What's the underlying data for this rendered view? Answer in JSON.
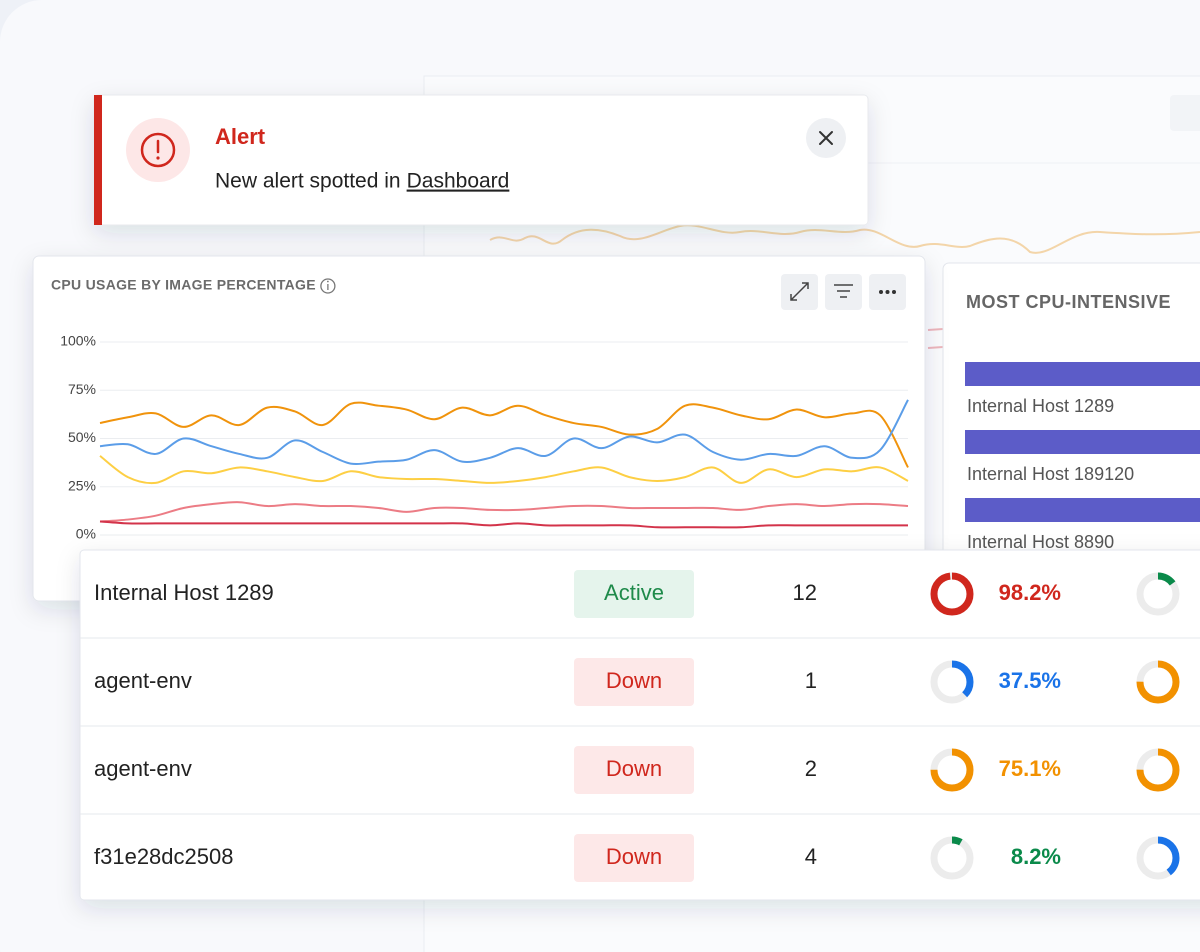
{
  "alert": {
    "title": "Alert",
    "message": "New alert spotted in",
    "link": "Dashboard"
  },
  "cpu_chart": {
    "type": "line",
    "title": "CPU USAGE BY IMAGE PERCENTAGE",
    "ylim": [
      0,
      100
    ],
    "yticks": [
      {
        "value": 0,
        "label": "0%"
      },
      {
        "value": 25,
        "label": "25%"
      },
      {
        "value": 50,
        "label": "50%"
      },
      {
        "value": 75,
        "label": "75%"
      },
      {
        "value": 100,
        "label": "100%"
      }
    ],
    "grid": true,
    "series": [
      {
        "color": "#f0930c",
        "values": [
          58,
          61,
          63,
          56,
          62,
          57,
          66,
          64,
          57,
          68,
          67,
          65,
          60,
          66,
          62,
          67,
          62,
          58,
          56,
          52,
          55,
          67,
          66,
          62,
          60,
          65,
          61,
          63,
          62,
          35
        ]
      },
      {
        "color": "#5b9de8",
        "values": [
          46,
          47,
          42,
          50,
          46,
          42,
          40,
          49,
          43,
          37,
          38,
          39,
          44,
          38,
          40,
          45,
          41,
          50,
          45,
          51,
          48,
          52,
          43,
          39,
          42,
          41,
          46,
          40,
          44,
          70
        ]
      },
      {
        "color": "#fdcf44",
        "values": [
          41,
          30,
          27,
          33,
          32,
          35,
          33,
          30,
          28,
          33,
          30,
          29,
          29,
          28,
          27,
          28,
          30,
          33,
          35,
          30,
          28,
          30,
          35,
          27,
          34,
          30,
          34,
          33,
          35,
          28
        ]
      },
      {
        "color": "#ec7c85",
        "values": [
          7,
          8,
          10,
          14,
          16,
          17,
          15,
          16,
          15,
          15,
          14,
          12,
          14,
          14,
          13,
          13,
          14,
          15,
          15,
          14,
          14,
          14,
          14,
          13,
          15,
          16,
          15,
          16,
          16,
          15
        ]
      },
      {
        "color": "#d3334a",
        "values": [
          7,
          6,
          6,
          6,
          6,
          6,
          6,
          6,
          6,
          6,
          6,
          6,
          6,
          6,
          5,
          6,
          5,
          5,
          5,
          5,
          4,
          4,
          4,
          4,
          5,
          5,
          5,
          5,
          5,
          5
        ]
      }
    ]
  },
  "top_hosts": {
    "title": "MOST CPU-INTENSIVE",
    "color": "#5c5cc8",
    "hosts": [
      "Internal Host 1289",
      "Internal Host 189120",
      "Internal Host 8890"
    ]
  },
  "table": {
    "rows": [
      {
        "name": "Internal Host 1289",
        "status": {
          "text": "Active",
          "color": "#1e8a4a",
          "background": "#e5f4ec"
        },
        "count": 12,
        "cpu": {
          "value": 98.2,
          "label": "98.2%",
          "color": "#d0271d"
        }
      },
      {
        "name": "agent-env",
        "status": {
          "text": "Down",
          "color": "#d0271d",
          "background": "#fde8e8"
        },
        "count": 1,
        "cpu": {
          "value": 37.5,
          "label": "37.5%",
          "color": "#1a73e8"
        }
      },
      {
        "name": "agent-env",
        "status": {
          "text": "Down",
          "color": "#d0271d",
          "background": "#fde8e8"
        },
        "count": 2,
        "cpu": {
          "value": 75.1,
          "label": "75.1%",
          "color": "#f29100"
        }
      },
      {
        "name": "f31e28dc2508",
        "status": {
          "text": "Down",
          "color": "#d0271d",
          "background": "#fde8e8"
        },
        "count": 4,
        "cpu": {
          "value": 8.2,
          "label": "8.2%",
          "color": "#0a8a4a"
        }
      }
    ]
  }
}
